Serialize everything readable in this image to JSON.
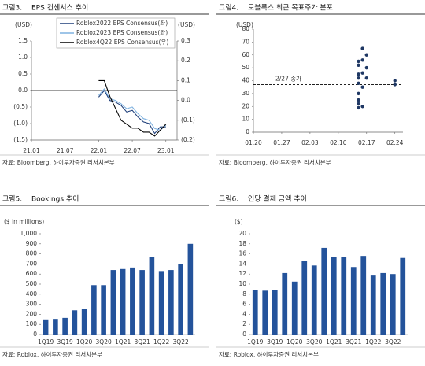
{
  "chart_data": [
    {
      "type": "line",
      "figure": "그림3.",
      "title": "EPS 컨센서스 추이",
      "source": "자료: Bloomberg, 하이투자증권 리서치본부",
      "y_label": "(USD)",
      "y2_label": "(USD)",
      "x": [
        "22.01",
        "22.02",
        "22.03",
        "22.04",
        "22.05",
        "22.06",
        "22.07",
        "22.08",
        "22.09",
        "22.10",
        "22.11",
        "22.12",
        "23.01"
      ],
      "xlim": [
        "21.01",
        "23.03"
      ],
      "xticks": [
        "21.01",
        "21.07",
        "22.01",
        "22.07",
        "23.01"
      ],
      "ylim": [
        -1.5,
        1.5
      ],
      "yticks": [
        1.5,
        {
          "value": 1.0,
          "label": "1.0"
        },
        0.5,
        {
          "value": 0,
          "label": "0.0"
        },
        {
          "value": -0.5,
          "label": "(0.5)"
        },
        {
          "value": -1.0,
          "label": "(1.0)"
        },
        {
          "value": -1.5,
          "label": "(1.5)"
        }
      ],
      "y2lim": [
        -0.2,
        0.3
      ],
      "y2ticks": [
        0.3,
        0.2,
        0.1,
        {
          "value": 0,
          "label": "0.0"
        },
        {
          "value": -0.1,
          "label": "(0.1)"
        },
        {
          "value": -0.2,
          "label": "(0.2)"
        }
      ],
      "series": [
        {
          "name": "Roblox2022 EPS Consensus(좌)",
          "color": "#1f3f7a",
          "values": [
            -0.2,
            0.0,
            -0.3,
            -0.35,
            -0.45,
            -0.65,
            -0.6,
            -0.8,
            -0.95,
            -1.0,
            -1.3,
            -1.1,
            -1.1
          ]
        },
        {
          "name": "Roblox2023 EPS Consensus(좌)",
          "color": "#7fb2e0",
          "values": [
            -0.15,
            0.05,
            -0.25,
            -0.3,
            -0.4,
            -0.55,
            -0.5,
            -0.7,
            -0.85,
            -0.9,
            -1.15,
            -1.2,
            -1.05
          ]
        },
        {
          "name": "Roblox4Q22 EPS Consensus(우)",
          "color": "#000000",
          "axis": "y2",
          "values": [
            0.1,
            0.1,
            0.02,
            -0.04,
            -0.1,
            -0.12,
            -0.14,
            -0.14,
            -0.16,
            -0.16,
            -0.18,
            -0.15,
            -0.12
          ]
        }
      ]
    },
    {
      "type": "scatter",
      "figure": "그림4.",
      "title": "로블록스 최근 목표주가 분포",
      "source": "자료: Bloomberg, 하이투자증권 리서치본부",
      "y_label": "(USD)",
      "color": "#1f3864",
      "x": [
        "02.15",
        "02.15",
        "02.15",
        "02.15",
        "02.15",
        "02.15",
        "02.15",
        "02.15",
        "02.15",
        "02.16",
        "02.16",
        "02.16",
        "02.16",
        "02.16",
        "02.17",
        "02.17",
        "02.17",
        "02.24",
        "02.24"
      ],
      "values": [
        55,
        52,
        45,
        42,
        38,
        30,
        25,
        22,
        19,
        65,
        56,
        46,
        35,
        20,
        60,
        50,
        42,
        40,
        37
      ],
      "xlim": [
        "01.20",
        "02.26"
      ],
      "xticks": [
        "01.20",
        "01.27",
        "02.03",
        "02.10",
        "02.17",
        "02.24"
      ],
      "ylim": [
        0,
        80
      ],
      "yticks": [
        0,
        10,
        20,
        30,
        40,
        50,
        60,
        70,
        80
      ],
      "reference_line": {
        "value": 37,
        "label": "2/27 종가"
      }
    },
    {
      "type": "bar",
      "figure": "그림5.",
      "title": "Bookings 추이",
      "source": "자료: Roblox, 하이투자증권 리서치본부",
      "y_label": "($ in millions)",
      "color": "#24539b",
      "categories": [
        "1Q19",
        null,
        "3Q19",
        null,
        "1Q20",
        null,
        "3Q20",
        null,
        "1Q21",
        null,
        "3Q21",
        null,
        "1Q22",
        null,
        "3Q22",
        null
      ],
      "values": [
        150,
        155,
        165,
        240,
        255,
        490,
        490,
        640,
        650,
        665,
        640,
        770,
        630,
        640,
        700,
        900
      ],
      "ylim": [
        0,
        1000
      ],
      "yticks": [
        0,
        100,
        200,
        300,
        400,
        500,
        600,
        700,
        800,
        900,
        {
          "value": 1000,
          "label": "1,000"
        }
      ]
    },
    {
      "type": "bar",
      "figure": "그림6.",
      "title": "인당 결제 금액 추이",
      "source": "자료: Roblox, 하이투자증권 리서치본부",
      "y_label": "($)",
      "color": "#24539b",
      "categories": [
        "1Q19",
        null,
        "3Q19",
        null,
        "1Q20",
        null,
        "3Q20",
        null,
        "1Q21",
        null,
        "3Q21",
        null,
        "1Q22",
        null,
        "3Q22",
        null
      ],
      "values": [
        8.9,
        8.7,
        8.9,
        12.2,
        10.5,
        14.6,
        13.7,
        17.2,
        15.4,
        15.4,
        13.4,
        15.6,
        11.7,
        12.2,
        12.0,
        15.2
      ],
      "ylim": [
        0,
        20
      ],
      "yticks": [
        0,
        2,
        4,
        6,
        8,
        10,
        12,
        14,
        16,
        18,
        20
      ]
    }
  ]
}
